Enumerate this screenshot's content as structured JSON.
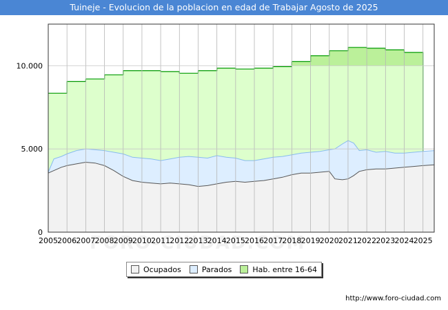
{
  "chart_data": {
    "type": "area",
    "title": "Tuineje - Evolucion de la poblacion en edad de Trabajar Agosto de 2025",
    "ylim": [
      0,
      12500
    ],
    "yticks": [
      0,
      5000,
      10000
    ],
    "ytick_labels": [
      "0",
      "5.000",
      "10.000"
    ],
    "x_tick_labels": [
      "2005",
      "2006",
      "2007",
      "2008",
      "2009",
      "2010",
      "2011",
      "2012",
      "2013",
      "2014",
      "2015",
      "2016",
      "2017",
      "2018",
      "2019",
      "2020",
      "2021",
      "2022",
      "2023",
      "2024",
      "2025"
    ],
    "xlim": [
      2005,
      2025.6
    ],
    "grid": true,
    "legend_position": "bottom",
    "colors": {
      "ocupados_fill": "#f2f2f2",
      "ocupados_line": "#555555",
      "parados_fill": "#ddeeff",
      "parados_line": "#88bbee",
      "hab_fill": "#ddffcc",
      "hab_fill_top": "#bbf09a",
      "hab_line": "#009900",
      "title_bg": "#4a86d4"
    },
    "series": [
      {
        "name": "Hab. entre 16-64",
        "x": [
          2005,
          2006,
          2007,
          2008,
          2009,
          2010,
          2011,
          2012,
          2013,
          2014,
          2015,
          2016,
          2017,
          2018,
          2019,
          2020,
          2021,
          2022,
          2023,
          2024
        ],
        "values": [
          8350,
          9050,
          9200,
          9450,
          9700,
          9700,
          9650,
          9550,
          9700,
          9850,
          9800,
          9850,
          9950,
          10250,
          10600,
          10900,
          11100,
          11050,
          10950,
          10800
        ]
      },
      {
        "name": "Parados",
        "x": [
          2005.0,
          2005.3,
          2005.7,
          2006.0,
          2006.5,
          2007.0,
          2007.5,
          2008.0,
          2008.5,
          2009.0,
          2009.5,
          2010.0,
          2010.5,
          2011.0,
          2011.5,
          2012.0,
          2012.5,
          2013.0,
          2013.5,
          2014.0,
          2014.5,
          2015.0,
          2015.5,
          2016.0,
          2016.5,
          2017.0,
          2017.5,
          2018.0,
          2018.5,
          2019.0,
          2019.5,
          2020.0,
          2020.3,
          2020.7,
          2021.0,
          2021.3,
          2021.6,
          2022.0,
          2022.5,
          2023.0,
          2023.5,
          2024.0,
          2024.5,
          2025.0,
          2025.6
        ],
        "values": [
          3600,
          4400,
          4550,
          4700,
          4900,
          5000,
          4950,
          4900,
          4800,
          4700,
          4500,
          4450,
          4400,
          4300,
          4400,
          4500,
          4550,
          4500,
          4450,
          4600,
          4500,
          4450,
          4300,
          4300,
          4400,
          4500,
          4550,
          4650,
          4750,
          4800,
          4850,
          4950,
          5000,
          5300,
          5500,
          5350,
          4900,
          4950,
          4800,
          4850,
          4750,
          4750,
          4800,
          4850,
          4900
        ]
      },
      {
        "name": "Ocupados",
        "x": [
          2005.0,
          2005.3,
          2005.7,
          2006.0,
          2006.5,
          2007.0,
          2007.5,
          2008.0,
          2008.5,
          2009.0,
          2009.5,
          2010.0,
          2010.5,
          2011.0,
          2011.5,
          2012.0,
          2012.5,
          2013.0,
          2013.5,
          2014.0,
          2014.5,
          2015.0,
          2015.5,
          2016.0,
          2016.5,
          2017.0,
          2017.5,
          2018.0,
          2018.5,
          2019.0,
          2019.5,
          2020.0,
          2020.3,
          2020.7,
          2021.0,
          2021.3,
          2021.6,
          2022.0,
          2022.5,
          2023.0,
          2023.5,
          2024.0,
          2024.5,
          2025.0,
          2025.6
        ],
        "values": [
          3550,
          3700,
          3900,
          4000,
          4100,
          4200,
          4150,
          4000,
          3700,
          3350,
          3100,
          3000,
          2950,
          2900,
          2950,
          2900,
          2850,
          2750,
          2800,
          2900,
          3000,
          3050,
          3000,
          3050,
          3100,
          3200,
          3300,
          3450,
          3550,
          3550,
          3600,
          3650,
          3200,
          3150,
          3200,
          3400,
          3650,
          3750,
          3800,
          3800,
          3850,
          3900,
          3950,
          4000,
          4050
        ]
      }
    ]
  },
  "legend": {
    "items": [
      {
        "label": "Ocupados"
      },
      {
        "label": "Parados"
      },
      {
        "label": "Hab. entre 16-64"
      }
    ]
  },
  "source_url": "http://www.foro-ciudad.com",
  "watermark": "FORO-CIUDAD.COM"
}
